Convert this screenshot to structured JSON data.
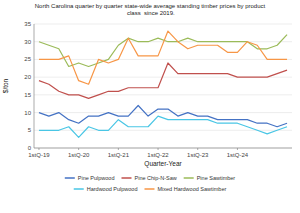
{
  "chart_data": {
    "type": "line",
    "title": "North Carolina quarter by quarter state-wide average standing timber prices by product\n class  since 2019.",
    "xlabel": "Quarter-Year",
    "ylabel": "$/ton",
    "categories": [
      "1stQ-19",
      null,
      null,
      null,
      "1stQ-20",
      null,
      null,
      null,
      "1stQ-21",
      null,
      null,
      null,
      "1stQ-22",
      null,
      null,
      null,
      "1stQ-23",
      null,
      null,
      null,
      "1stQ-24",
      null,
      null,
      null,
      null,
      null
    ],
    "ylim": [
      0,
      35
    ],
    "yticks": [
      0,
      5,
      10,
      15,
      20,
      25,
      30,
      35
    ],
    "grid": true,
    "legend": "bottom",
    "series": [
      {
        "name": "Pine Pulpwood",
        "color": "#4472C4",
        "values": [
          10,
          9,
          10,
          8,
          7,
          9,
          9,
          10,
          9,
          9,
          12,
          9,
          11,
          11,
          9,
          10,
          9,
          9,
          8,
          8,
          8,
          8,
          7,
          7,
          6,
          7
        ]
      },
      {
        "name": "Pine Chip-N-Saw",
        "color": "#C0504D",
        "values": [
          19,
          18,
          16,
          15,
          15,
          14,
          15,
          16,
          16,
          17,
          17,
          17,
          17,
          24,
          21,
          21,
          21,
          21,
          21,
          21,
          20,
          20,
          20,
          20,
          21,
          22
        ]
      },
      {
        "name": "Pine Sawtimber",
        "color": "#9BBB59",
        "values": [
          30,
          29,
          28,
          23,
          24,
          23,
          24,
          25,
          29,
          31,
          30,
          30,
          31,
          30,
          30,
          31,
          30,
          30,
          30,
          30,
          30,
          30,
          28,
          28,
          29,
          32
        ]
      },
      {
        "name": "Hardwood Pulpwood",
        "color": "#49C6E5",
        "values": [
          5,
          5,
          5,
          6,
          3,
          6,
          5,
          5,
          8,
          6,
          6,
          6,
          9,
          8,
          8,
          8,
          8,
          8,
          7,
          7,
          7,
          6,
          5,
          4,
          5,
          6
        ]
      },
      {
        "name": "Mixed Hardwood Sawtimber",
        "color": "#F79646",
        "values": [
          25,
          25,
          25,
          26,
          19,
          18,
          25,
          24,
          25,
          31,
          26,
          26,
          26,
          33,
          30,
          28,
          29,
          29,
          29,
          27,
          27,
          30,
          29,
          25,
          25,
          25
        ]
      }
    ]
  }
}
